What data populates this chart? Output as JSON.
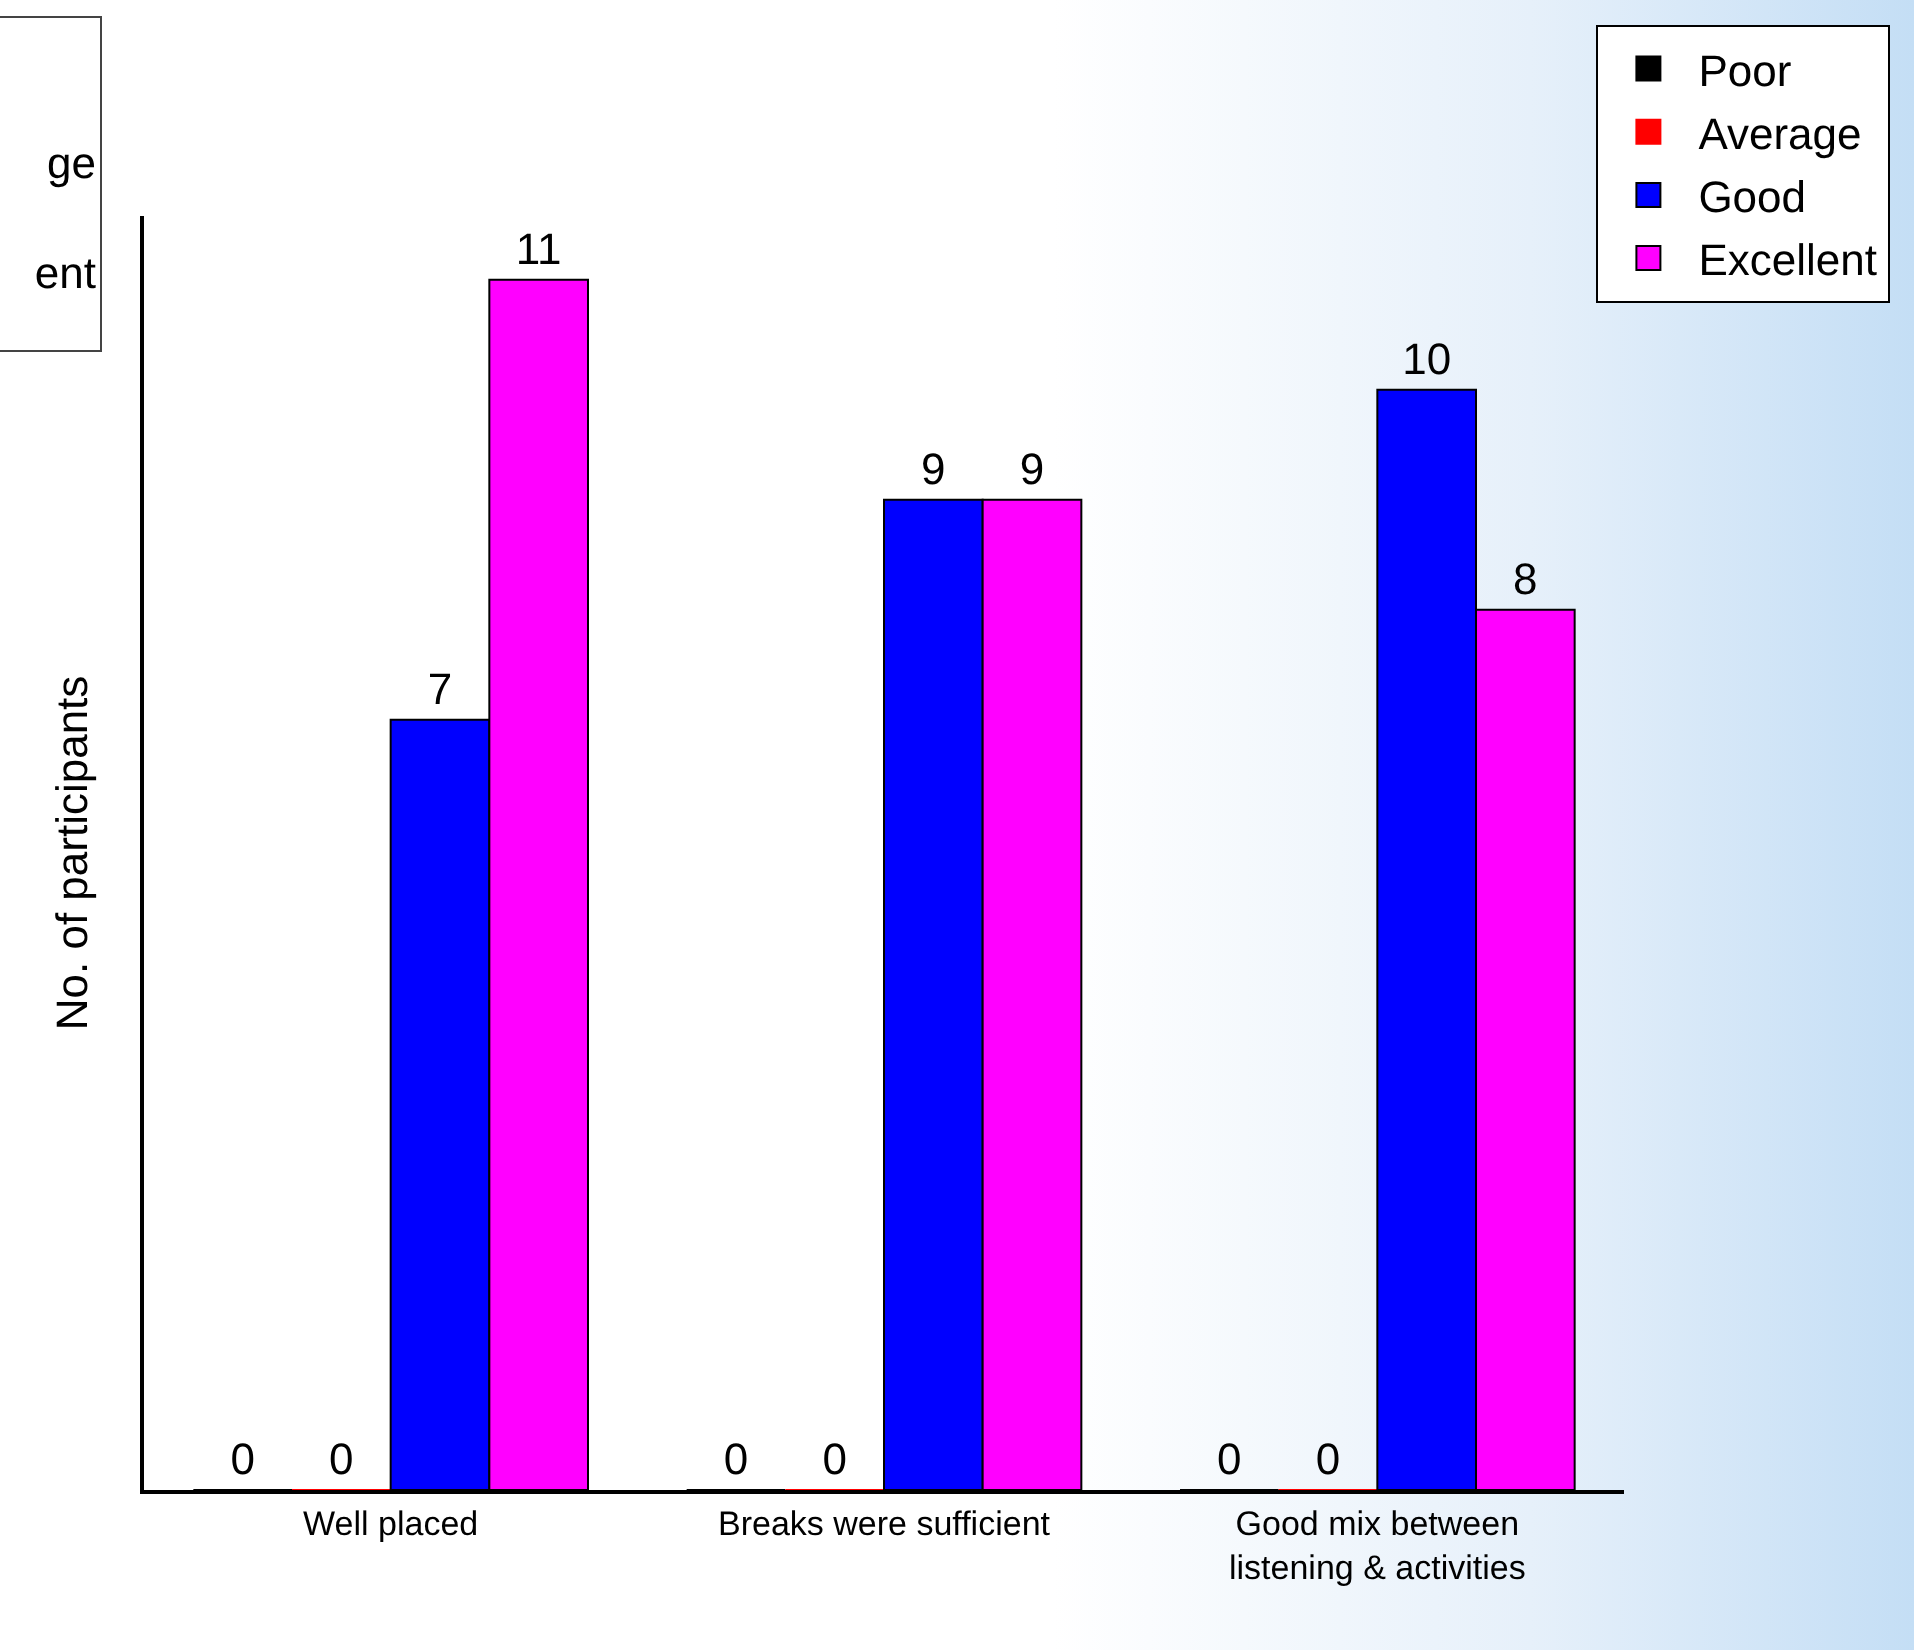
{
  "chart_data": {
    "type": "bar",
    "ylabel": "No. of participants",
    "categories": [
      "Well placed",
      "Breaks were sufficient",
      "Good mix between\nlistening & activities"
    ],
    "series": [
      {
        "name": "Poor",
        "color": "#000000",
        "values": [
          0,
          0,
          0
        ]
      },
      {
        "name": "Average",
        "color": "#ff0000",
        "values": [
          0,
          0,
          0
        ]
      },
      {
        "name": "Good",
        "color": "#0000ff",
        "values": [
          7,
          9,
          10
        ]
      },
      {
        "name": "Excellent",
        "color": "#ff00ff",
        "values": [
          11,
          9,
          8
        ]
      }
    ],
    "data_labels": true,
    "legend": "top right",
    "grid": false,
    "annotations": [
      "ge",
      "ent"
    ]
  }
}
